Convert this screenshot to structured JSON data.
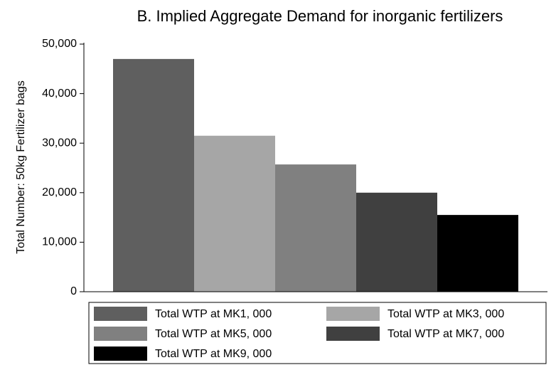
{
  "chart_data": {
    "type": "bar",
    "title": "B. Implied Aggregate Demand for inorganic fertilizers",
    "y_label": "Total Number: 50kg Fertilizer bags",
    "series": [
      {
        "name": "Total WTP at MK1, 000",
        "color": "#5f5f5f",
        "values": [
          47000
        ]
      },
      {
        "name": "Total WTP at MK3, 000",
        "color": "#a6a6a6",
        "values": [
          31500
        ]
      },
      {
        "name": "Total WTP at MK5, 000",
        "color": "#808080",
        "values": [
          25700
        ]
      },
      {
        "name": "Total WTP at MK7, 000",
        "color": "#404040",
        "values": [
          20000
        ]
      },
      {
        "name": "Total WTP at MK9, 000",
        "color": "#000000",
        "values": [
          15500
        ]
      }
    ],
    "ylim": [
      0,
      50000
    ],
    "yticks": [
      0,
      {
        "value": 10000,
        "label": "10,000"
      },
      {
        "value": 20000,
        "label": "20,000"
      },
      {
        "value": 30000,
        "label": "30,000"
      },
      {
        "value": 40000,
        "label": "40,000"
      },
      {
        "value": 50000,
        "label": "50,000"
      }
    ],
    "grid": false,
    "legend": "bottom"
  }
}
